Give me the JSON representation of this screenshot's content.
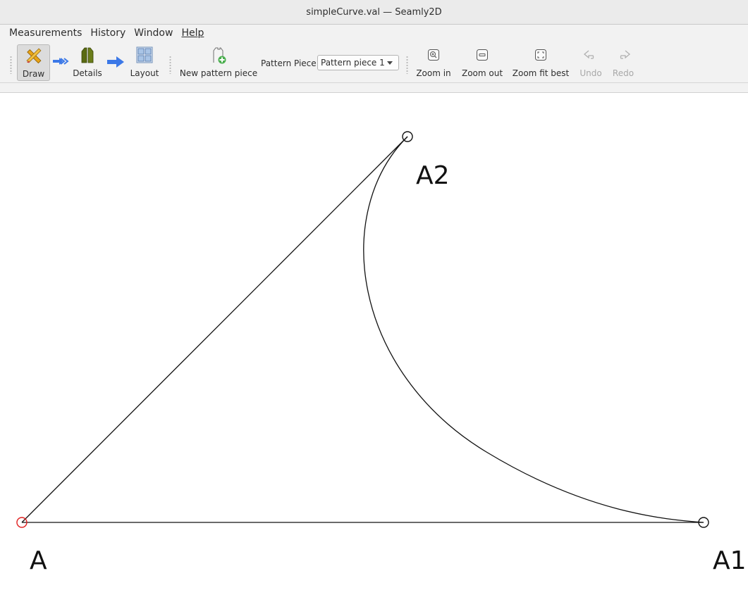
{
  "window": {
    "title": "simpleCurve.val — Seamly2D"
  },
  "menu": {
    "items": [
      "Measurements",
      "History",
      "Window",
      "Help"
    ]
  },
  "toolbar": {
    "draw_label": "Draw",
    "details_label": "Details",
    "layout_label": "Layout",
    "new_piece_label": "New pattern piece",
    "pattern_piece_label": "Pattern Piece:",
    "pattern_piece_value": "Pattern piece 1",
    "zoom_in_label": "Zoom in",
    "zoom_out_label": "Zoom out",
    "zoom_fit_label": "Zoom fit best",
    "undo_label": "Undo",
    "redo_label": "Redo"
  },
  "canvas": {
    "points": [
      {
        "name": "A",
        "color": "#e02020"
      },
      {
        "name": "A1",
        "color": "#111111"
      },
      {
        "name": "A2",
        "color": "#111111"
      }
    ]
  },
  "colors": {
    "active_mode": "#dcdcdc",
    "arrow_blue": "#3b78e7",
    "base_point": "#e02020"
  },
  "icons": {
    "draw": "pencil-ruler-icon",
    "details": "garment-icon",
    "layout": "layout-sheet-icon",
    "new_piece": "new-pattern-piece-icon",
    "zoom_in": "zoom-in-icon",
    "zoom_out": "zoom-out-icon",
    "zoom_fit": "zoom-fit-icon",
    "undo": "undo-icon",
    "redo": "redo-icon"
  }
}
